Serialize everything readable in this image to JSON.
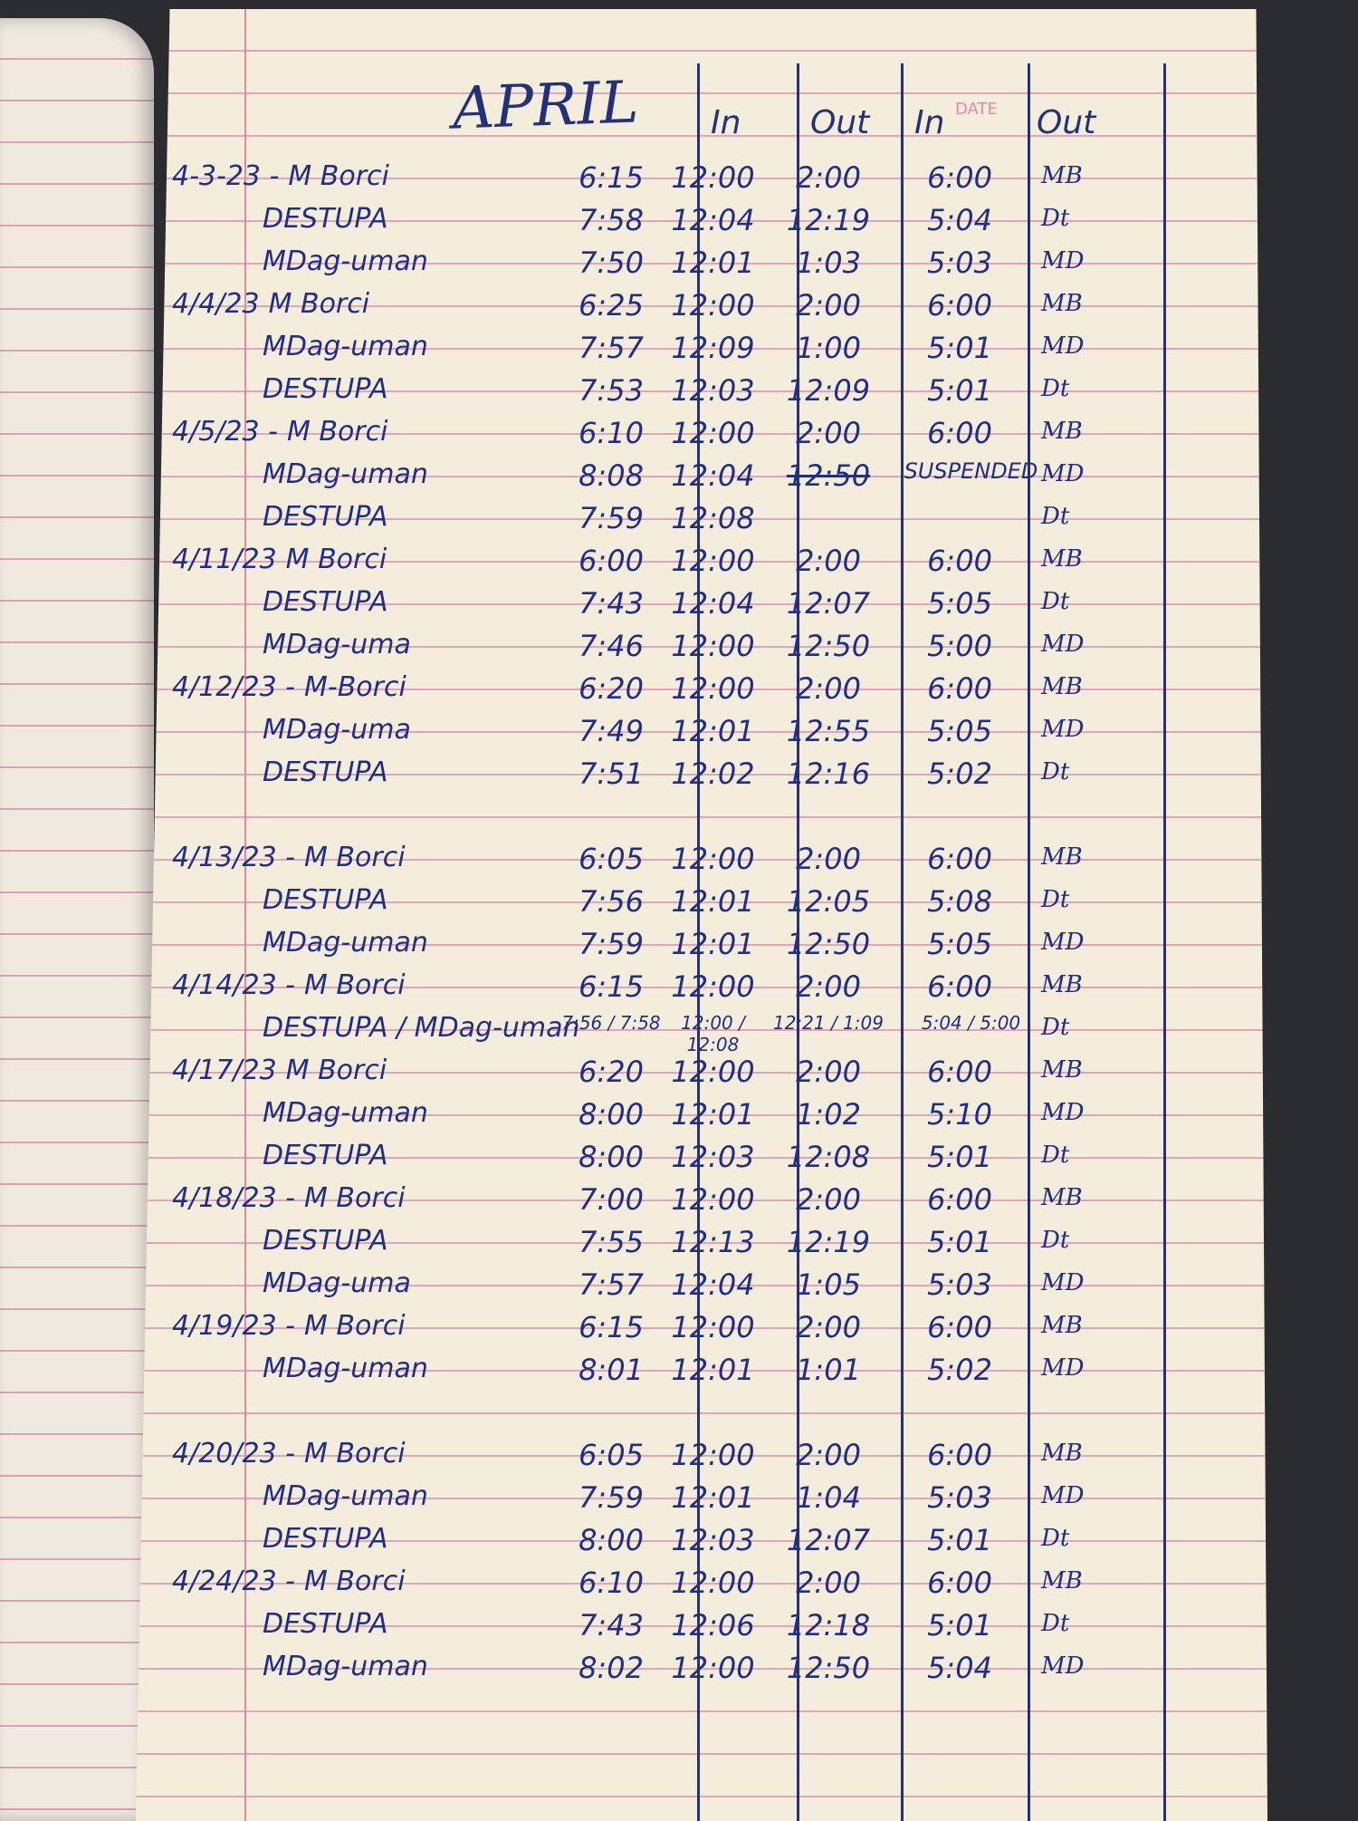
{
  "header": {
    "month": "APRIL",
    "columns": [
      "In",
      "Out",
      "In",
      "Out"
    ],
    "printed_label": "DATE"
  },
  "colors": {
    "ink": "#1f2e86",
    "ruling": "#e0a6b8",
    "paper": "#f5eddc"
  },
  "rows": [
    {
      "date": "4-3-23 -",
      "name": "M Borci",
      "in1": "6:15",
      "out1": "12:00",
      "in2": "2:00",
      "out2": "6:00",
      "sig": "MB"
    },
    {
      "date": "",
      "name": "DESTUPA",
      "in1": "7:58",
      "out1": "12:04",
      "in2": "12:19",
      "out2": "5:04",
      "sig": "Dt"
    },
    {
      "date": "",
      "name": "MDag-uman",
      "in1": "7:50",
      "out1": "12:01",
      "in2": "1:03",
      "out2": "5:03",
      "sig": "MD"
    },
    {
      "date": "4/4/23",
      "name": "M Borci",
      "in1": "6:25",
      "out1": "12:00",
      "in2": "2:00",
      "out2": "6:00",
      "sig": "MB"
    },
    {
      "date": "",
      "name": "MDag-uman",
      "in1": "7:57",
      "out1": "12:09",
      "in2": "1:00",
      "out2": "5:01",
      "sig": "MD"
    },
    {
      "date": "",
      "name": "DESTUPA",
      "in1": "7:53",
      "out1": "12:03",
      "in2": "12:09",
      "out2": "5:01",
      "sig": "Dt"
    },
    {
      "date": "4/5/23 -",
      "name": "M Borci",
      "in1": "6:10",
      "out1": "12:00",
      "in2": "2:00",
      "out2": "6:00",
      "sig": "MB"
    },
    {
      "date": "",
      "name": "MDag-uman",
      "in1": "8:08",
      "out1": "12:04",
      "in2": "12:50",
      "out2": "SUSPENDED",
      "sig": "MD",
      "struck": true
    },
    {
      "date": "",
      "name": "DESTUPA",
      "in1": "7:59",
      "out1": "12:08",
      "in2": "",
      "out2": "",
      "sig": "Dt"
    },
    {
      "date": "4/11/23",
      "name": "M Borci",
      "in1": "6:00",
      "out1": "12:00",
      "in2": "2:00",
      "out2": "6:00",
      "sig": "MB"
    },
    {
      "date": "",
      "name": "DESTUPA",
      "in1": "7:43",
      "out1": "12:04",
      "in2": "12:07",
      "out2": "5:05",
      "sig": "Dt"
    },
    {
      "date": "",
      "name": "MDag-uma",
      "in1": "7:46",
      "out1": "12:00",
      "in2": "12:50",
      "out2": "5:00",
      "sig": "MD"
    },
    {
      "date": "4/12/23 -",
      "name": "M-Borci",
      "in1": "6:20",
      "out1": "12:00",
      "in2": "2:00",
      "out2": "6:00",
      "sig": "MB"
    },
    {
      "date": "",
      "name": "MDag-uma",
      "in1": "7:49",
      "out1": "12:01",
      "in2": "12:55",
      "out2": "5:05",
      "sig": "MD"
    },
    {
      "date": "",
      "name": "DESTUPA",
      "in1": "7:51",
      "out1": "12:02",
      "in2": "12:16",
      "out2": "5:02",
      "sig": "Dt"
    },
    {
      "blank": true
    },
    {
      "date": "4/13/23 -",
      "name": "M Borci",
      "in1": "6:05",
      "out1": "12:00",
      "in2": "2:00",
      "out2": "6:00",
      "sig": "MB"
    },
    {
      "date": "",
      "name": "DESTUPA",
      "in1": "7:56",
      "out1": "12:01",
      "in2": "12:05",
      "out2": "5:08",
      "sig": "Dt"
    },
    {
      "date": "",
      "name": "MDag-uman",
      "in1": "7:59",
      "out1": "12:01",
      "in2": "12:50",
      "out2": "5:05",
      "sig": "MD"
    },
    {
      "date": "4/14/23 -",
      "name": "M Borci",
      "in1": "6:15",
      "out1": "12:00",
      "in2": "2:00",
      "out2": "6:00",
      "sig": "MB"
    },
    {
      "date": "",
      "name": "DESTUPA / MDag-uman",
      "in1": "7:56 / 7:58",
      "out1": "12:00 / 12:08",
      "in2": "12:21 / 1:09",
      "out2": "5:04 / 5:00",
      "sig": "Dt"
    },
    {
      "date": "4/17/23",
      "name": "M Borci",
      "in1": "6:20",
      "out1": "12:00",
      "in2": "2:00",
      "out2": "6:00",
      "sig": "MB"
    },
    {
      "date": "",
      "name": "MDag-uman",
      "in1": "8:00",
      "out1": "12:01",
      "in2": "1:02",
      "out2": "5:10",
      "sig": "MD"
    },
    {
      "date": "",
      "name": "DESTUPA",
      "in1": "8:00",
      "out1": "12:03",
      "in2": "12:08",
      "out2": "5:01",
      "sig": "Dt"
    },
    {
      "date": "4/18/23 -",
      "name": "M Borci",
      "in1": "7:00",
      "out1": "12:00",
      "in2": "2:00",
      "out2": "6:00",
      "sig": "MB"
    },
    {
      "date": "",
      "name": "DESTUPA",
      "in1": "7:55",
      "out1": "12:13",
      "in2": "12:19",
      "out2": "5:01",
      "sig": "Dt"
    },
    {
      "date": "",
      "name": "MDag-uma",
      "in1": "7:57",
      "out1": "12:04",
      "in2": "1:05",
      "out2": "5:03",
      "sig": "MD"
    },
    {
      "date": "4/19/23 -",
      "name": "M Borci",
      "in1": "6:15",
      "out1": "12:00",
      "in2": "2:00",
      "out2": "6:00",
      "sig": "MB"
    },
    {
      "date": "",
      "name": "MDag-uman",
      "in1": "8:01",
      "out1": "12:01",
      "in2": "1:01",
      "out2": "5:02",
      "sig": "MD"
    },
    {
      "blank": true
    },
    {
      "date": "4/20/23 -",
      "name": "M Borci",
      "in1": "6:05",
      "out1": "12:00",
      "in2": "2:00",
      "out2": "6:00",
      "sig": "MB"
    },
    {
      "date": "",
      "name": "MDag-uman",
      "in1": "7:59",
      "out1": "12:01",
      "in2": "1:04",
      "out2": "5:03",
      "sig": "MD"
    },
    {
      "date": "",
      "name": "DESTUPA",
      "in1": "8:00",
      "out1": "12:03",
      "in2": "12:07",
      "out2": "5:01",
      "sig": "Dt"
    },
    {
      "date": "4/24/23 -",
      "name": "M Borci",
      "in1": "6:10",
      "out1": "12:00",
      "in2": "2:00",
      "out2": "6:00",
      "sig": "MB"
    },
    {
      "date": "",
      "name": "DESTUPA",
      "in1": "7:43",
      "out1": "12:06",
      "in2": "12:18",
      "out2": "5:01",
      "sig": "Dt"
    },
    {
      "date": "",
      "name": "MDag-uman",
      "in1": "8:02",
      "out1": "12:00",
      "in2": "12:50",
      "out2": "5:04",
      "sig": "MD"
    }
  ]
}
